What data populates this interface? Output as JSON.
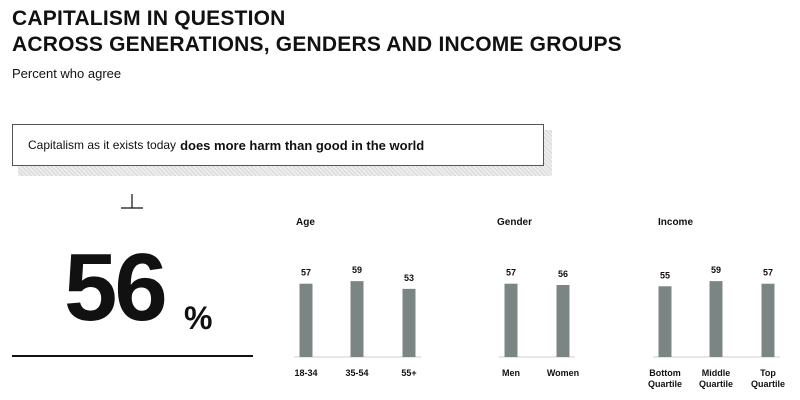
{
  "header": {
    "title_line1": "CAPITALISM IN QUESTION",
    "title_line2": "ACROSS GENERATIONS, GENDERS AND INCOME GROUPS",
    "subtitle": "Percent who agree"
  },
  "statement": {
    "prefix": "Capitalism as it exists today",
    "emphasis": "does more harm than good in the world"
  },
  "overall": {
    "value": "56",
    "unit": "%"
  },
  "colors": {
    "bar": "#7b8584",
    "text": "#111111",
    "baseline": "#cfcfcf"
  },
  "chart_data": {
    "type": "bar",
    "ylim": [
      0,
      70
    ],
    "groups": [
      {
        "name": "Age",
        "categories": [
          [
            "18-34"
          ],
          [
            "35-54"
          ],
          [
            "55+"
          ]
        ],
        "values": [
          57,
          59,
          53
        ]
      },
      {
        "name": "Gender",
        "categories": [
          [
            "Men"
          ],
          [
            "Women"
          ]
        ],
        "values": [
          57,
          56
        ]
      },
      {
        "name": "Income",
        "categories": [
          [
            "Bottom",
            "Quartile"
          ],
          [
            "Middle",
            "Quartile"
          ],
          [
            "Top",
            "Quartile"
          ]
        ],
        "values": [
          55,
          59,
          57
        ]
      }
    ]
  }
}
